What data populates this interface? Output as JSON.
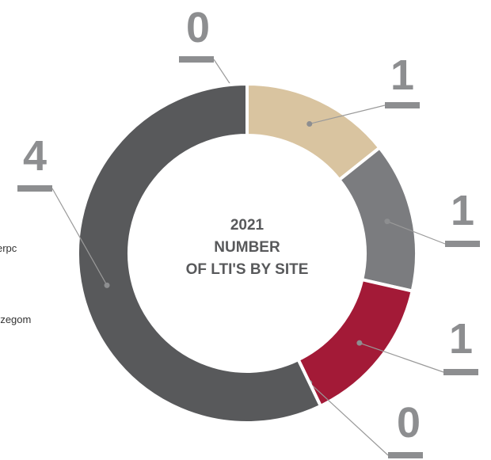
{
  "chart_data": {
    "type": "donut",
    "title": [
      "2021",
      "NUMBER",
      "OF LTI'S BY SITE"
    ],
    "values": [
      0,
      1,
      1,
      1,
      0,
      4
    ],
    "colors": [
      "#58595b",
      "#d9c4a0",
      "#7b7c7f",
      "#a31a37",
      "#58595b",
      "#58595b"
    ],
    "visible_labels": [
      "erpc",
      "rzegom"
    ]
  }
}
